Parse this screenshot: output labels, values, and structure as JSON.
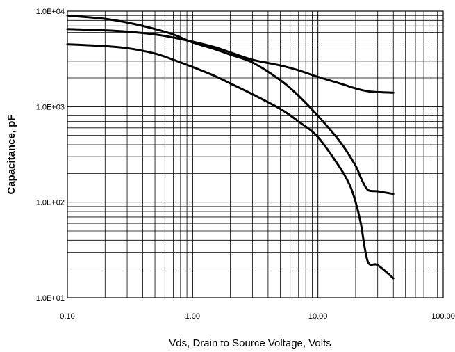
{
  "chart_data": {
    "type": "line",
    "title": "",
    "xlabel": "Vds, Drain to Source Voltage, Volts",
    "ylabel": "Capacitance, pF",
    "x_scale": "log",
    "y_scale": "log",
    "xlim": [
      0.1,
      100
    ],
    "ylim": [
      10,
      10000
    ],
    "x_ticks": [
      "0.10",
      "1.00",
      "10.00",
      "100.00"
    ],
    "y_ticks": [
      "1.0E+01",
      "1.0E+02",
      "1.0E+03",
      "1.0E+04"
    ],
    "grid": true,
    "legend": "none",
    "line_color": "#000000",
    "series": [
      {
        "x": [
          0.1,
          0.2,
          0.3,
          0.5,
          0.7,
          1.0,
          1.5,
          2.0,
          3.0,
          5.0,
          7.0,
          10,
          15,
          20,
          25,
          30,
          40
        ],
        "y": [
          6500,
          6300,
          6100,
          5700,
          5300,
          4800,
          4200,
          3700,
          3100,
          2700,
          2400,
          2050,
          1750,
          1550,
          1450,
          1420,
          1400
        ]
      },
      {
        "x": [
          0.1,
          0.2,
          0.3,
          0.5,
          0.7,
          1.0,
          1.5,
          2.0,
          3.0,
          5.0,
          7.0,
          10,
          15,
          20,
          22,
          25,
          30,
          40
        ],
        "y": [
          9000,
          8300,
          7600,
          6500,
          5700,
          4700,
          4000,
          3500,
          2900,
          1900,
          1300,
          800,
          430,
          240,
          180,
          135,
          130,
          122
        ]
      },
      {
        "x": [
          0.1,
          0.2,
          0.3,
          0.5,
          0.7,
          1.0,
          1.5,
          2.0,
          3.0,
          5.0,
          7.0,
          10,
          15,
          18,
          20,
          22,
          25,
          30,
          40
        ],
        "y": [
          4500,
          4300,
          4100,
          3600,
          3100,
          2600,
          2100,
          1750,
          1350,
          950,
          700,
          480,
          230,
          150,
          100,
          60,
          24,
          22,
          16
        ]
      }
    ]
  }
}
